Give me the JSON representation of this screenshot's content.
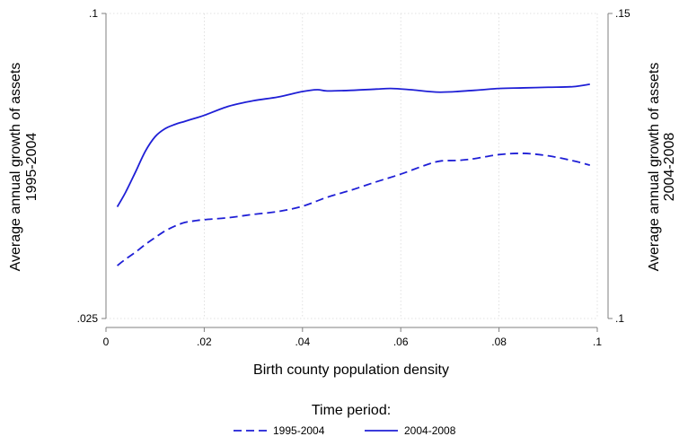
{
  "chart_data": {
    "type": "line",
    "xlabel": "Birth county population density",
    "ylabel_left": [
      "Average annual growth of assets",
      "1995-2004"
    ],
    "ylabel_right": [
      "Average annual growth of assets",
      "2004-2008"
    ],
    "x_ticks": [
      0,
      0.02,
      0.04,
      0.06,
      0.08,
      0.1
    ],
    "x_tick_labels": [
      "0",
      ".02",
      ".04",
      ".06",
      ".08",
      ".1"
    ],
    "xlim": [
      0,
      0.1
    ],
    "y_left_ticks": [
      0.025,
      0.1
    ],
    "y_left_tick_labels": [
      ".025",
      ".1"
    ],
    "ylim_left": [
      0.025,
      0.1
    ],
    "y_right_ticks": [
      0.1,
      0.15
    ],
    "y_right_tick_labels": [
      ".1",
      ".15"
    ],
    "ylim_right": [
      0.1,
      0.15
    ],
    "grid": true,
    "legend": {
      "title": "Time period:",
      "placement": "bottom",
      "entries": [
        "1995-2004",
        "2004-2008"
      ]
    },
    "colors": {
      "line": "#1f1fd6",
      "grid": "#d9d9d9",
      "axis": "#7f7f7f"
    },
    "series": [
      {
        "name": "1995-2004",
        "axis": "left",
        "style": "dashed",
        "x": [
          0.0023,
          0.004,
          0.006,
          0.008,
          0.01,
          0.012,
          0.014,
          0.016,
          0.018,
          0.02,
          0.025,
          0.03,
          0.035,
          0.04,
          0.045,
          0.05,
          0.055,
          0.06,
          0.065,
          0.068,
          0.072,
          0.075,
          0.08,
          0.085,
          0.09,
          0.095,
          0.0985
        ],
        "y": [
          0.038,
          0.0396,
          0.0413,
          0.0432,
          0.0449,
          0.0465,
          0.0477,
          0.0486,
          0.049,
          0.0493,
          0.0498,
          0.0506,
          0.0513,
          0.0526,
          0.0548,
          0.0566,
          0.0586,
          0.0605,
          0.0627,
          0.0637,
          0.0639,
          0.0643,
          0.0653,
          0.0656,
          0.065,
          0.0638,
          0.0627
        ]
      },
      {
        "name": "2004-2008",
        "axis": "right",
        "style": "solid",
        "x": [
          0.0023,
          0.004,
          0.006,
          0.008,
          0.01,
          0.012,
          0.014,
          0.016,
          0.018,
          0.02,
          0.025,
          0.03,
          0.035,
          0.04,
          0.043,
          0.045,
          0.05,
          0.055,
          0.058,
          0.062,
          0.068,
          0.075,
          0.08,
          0.085,
          0.09,
          0.095,
          0.0985
        ],
        "y": [
          0.1183,
          0.1207,
          0.124,
          0.1274,
          0.1298,
          0.1311,
          0.1318,
          0.1323,
          0.1328,
          0.1333,
          0.1348,
          0.1357,
          0.1363,
          0.1372,
          0.1375,
          0.1373,
          0.1374,
          0.1376,
          0.1377,
          0.1375,
          0.1371,
          0.1374,
          0.1377,
          0.1378,
          0.1379,
          0.138,
          0.1384
        ]
      }
    ]
  }
}
